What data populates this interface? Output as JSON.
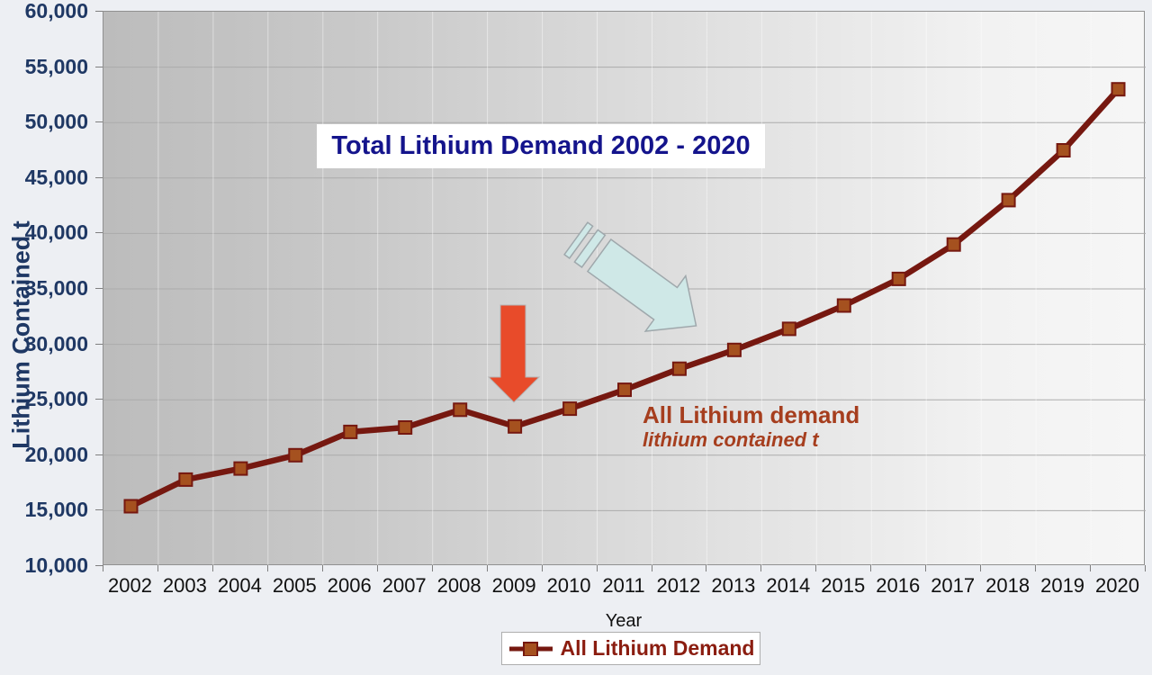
{
  "title": {
    "text": "Total Lithium Demand 2002 - 2020",
    "color": "#14148c"
  },
  "axes": {
    "y": {
      "title": "Lithium Contained t",
      "tick_labels": [
        "60,000",
        "55,000",
        "50,000",
        "45,000",
        "40,000",
        "35,000",
        "30,000",
        "25,000",
        "20,000",
        "15,000",
        "10,000"
      ],
      "label_color": "#1f3864"
    },
    "x": {
      "title": "Year",
      "tick_labels": [
        "2002",
        "2003",
        "2004",
        "2005",
        "2006",
        "2007",
        "2008",
        "2009",
        "2010",
        "2011",
        "2012",
        "2013",
        "2014",
        "2015",
        "2016",
        "2017",
        "2018",
        "2019",
        "2020"
      ]
    }
  },
  "legend": {
    "label": "All Lithium Demand",
    "text_color": "#8b1d10"
  },
  "annotations": {
    "series_label": "All Lithium demand",
    "series_sublabel": "lithium contained t",
    "text_color": "#a63e1e"
  },
  "colors": {
    "line": "#761810",
    "marker_fill": "#a5511f",
    "gridline": "#ababab",
    "vertical_gridline": "rgba(255,255,255,0.45)",
    "red_arrow_fill": "#e84b2a",
    "red_arrow_stroke": "#b5b5b5",
    "blue_arrow_fill": "#cfe8e7",
    "blue_arrow_stroke": "#9fa8ac"
  },
  "chart_data": {
    "type": "line",
    "title": "Total Lithium Demand 2002 - 2020",
    "xlabel": "Year",
    "ylabel": "Lithium Contained t",
    "ylim": [
      10000,
      60000
    ],
    "y_step": 5000,
    "grid": true,
    "legend_position": "bottom",
    "categories": [
      2002,
      2003,
      2004,
      2005,
      2006,
      2007,
      2008,
      2009,
      2010,
      2011,
      2012,
      2013,
      2014,
      2015,
      2016,
      2017,
      2018,
      2019,
      2020
    ],
    "series": [
      {
        "name": "All Lithium Demand",
        "marker": "square",
        "values": [
          15400,
          17800,
          18800,
          20000,
          22100,
          22500,
          24100,
          22600,
          24200,
          25900,
          27800,
          29500,
          31400,
          33500,
          35900,
          39000,
          43000,
          47500,
          53000
        ]
      }
    ]
  }
}
